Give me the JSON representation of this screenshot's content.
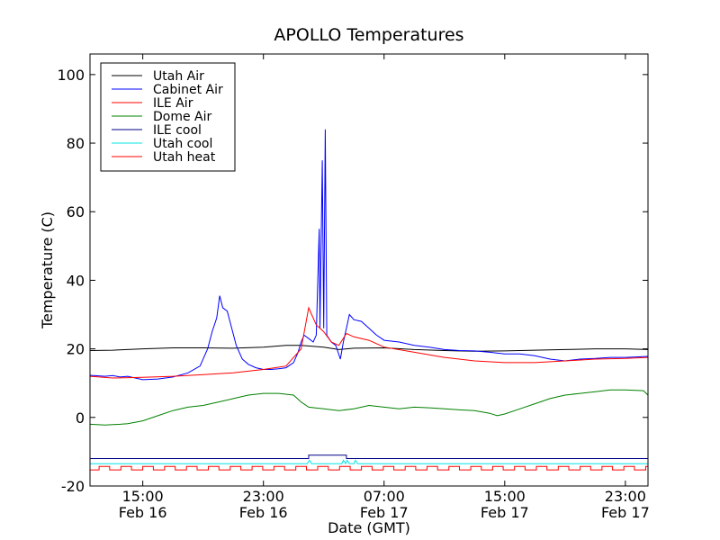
{
  "chart_data": {
    "type": "line",
    "title": "APOLLO Temperatures",
    "xlabel": "Date (GMT)",
    "ylabel": "Temperature (C)",
    "xlim": [
      11.5,
      48.5
    ],
    "ylim": [
      -20,
      106
    ],
    "y_ticks": [
      {
        "value": -20,
        "label": "-20"
      },
      {
        "value": 0,
        "label": "0"
      },
      {
        "value": 20,
        "label": "20"
      },
      {
        "value": 40,
        "label": "40"
      },
      {
        "value": 60,
        "label": "60"
      },
      {
        "value": 80,
        "label": "80"
      },
      {
        "value": 100,
        "label": "100"
      }
    ],
    "x_ticks": [
      {
        "value": 15,
        "time": "15:00",
        "date": "Feb 16"
      },
      {
        "value": 23,
        "time": "23:00",
        "date": "Feb 16"
      },
      {
        "value": 31,
        "time": "07:00",
        "date": "Feb 17"
      },
      {
        "value": 39,
        "time": "15:00",
        "date": "Feb 17"
      },
      {
        "value": 47,
        "time": "23:00",
        "date": "Feb 17"
      }
    ],
    "legend_position": "top-left",
    "series": [
      {
        "name": "Utah Air",
        "color": "#000000",
        "points": [
          [
            11.5,
            19.5
          ],
          [
            13,
            19.6
          ],
          [
            15,
            20
          ],
          [
            17,
            20.3
          ],
          [
            19,
            20.3
          ],
          [
            21,
            20.2
          ],
          [
            23,
            20.5
          ],
          [
            24.5,
            21
          ],
          [
            25.5,
            21
          ],
          [
            27,
            20.5
          ],
          [
            28,
            19.8
          ],
          [
            29,
            20.2
          ],
          [
            31,
            20.3
          ],
          [
            33,
            19.8
          ],
          [
            35,
            19.5
          ],
          [
            37,
            19.3
          ],
          [
            39,
            19.4
          ],
          [
            41,
            19.6
          ],
          [
            43,
            19.8
          ],
          [
            45,
            20
          ],
          [
            47,
            20
          ],
          [
            48.5,
            19.8
          ]
        ]
      },
      {
        "name": "Cabinet Air",
        "color": "#0000ff",
        "points": [
          [
            11.5,
            12.3
          ],
          [
            12.5,
            12
          ],
          [
            13,
            12.2
          ],
          [
            13.5,
            11.8
          ],
          [
            14,
            12
          ],
          [
            15,
            11
          ],
          [
            16,
            11.2
          ],
          [
            17,
            11.8
          ],
          [
            18,
            13
          ],
          [
            18.8,
            15
          ],
          [
            19.3,
            20
          ],
          [
            19.6,
            25
          ],
          [
            19.9,
            29
          ],
          [
            20.1,
            35.5
          ],
          [
            20.3,
            32
          ],
          [
            20.6,
            31
          ],
          [
            20.9,
            26
          ],
          [
            21.2,
            21
          ],
          [
            21.6,
            17
          ],
          [
            22,
            15.5
          ],
          [
            22.5,
            14.5
          ],
          [
            23,
            14
          ],
          [
            23.5,
            14
          ],
          [
            24,
            14.2
          ],
          [
            24.5,
            14.5
          ],
          [
            25,
            16
          ],
          [
            25.3,
            19
          ],
          [
            25.5,
            22
          ],
          [
            25.7,
            24
          ],
          [
            26,
            23
          ],
          [
            26.3,
            22
          ],
          [
            26.5,
            24
          ],
          [
            26.7,
            55
          ],
          [
            26.75,
            26
          ],
          [
            26.9,
            75
          ],
          [
            27,
            26
          ],
          [
            27.1,
            84
          ],
          [
            27.2,
            24
          ],
          [
            27.5,
            22
          ],
          [
            27.8,
            21
          ],
          [
            28.1,
            17
          ],
          [
            28.3,
            22
          ],
          [
            28.5,
            26
          ],
          [
            28.7,
            30
          ],
          [
            29,
            28.5
          ],
          [
            29.5,
            28
          ],
          [
            30,
            26
          ],
          [
            30.5,
            24
          ],
          [
            31,
            22.5
          ],
          [
            32,
            22
          ],
          [
            33,
            21
          ],
          [
            34,
            20.5
          ],
          [
            35,
            19.8
          ],
          [
            36,
            19.5
          ],
          [
            37,
            19.4
          ],
          [
            38,
            19
          ],
          [
            39,
            18.5
          ],
          [
            40,
            18.5
          ],
          [
            41,
            18
          ],
          [
            42,
            17
          ],
          [
            43,
            16.5
          ],
          [
            44,
            17
          ],
          [
            45,
            17.2
          ],
          [
            46,
            17.5
          ],
          [
            47,
            17.5
          ],
          [
            48.5,
            17.8
          ]
        ]
      },
      {
        "name": "ILE Air",
        "color": "#ff0000",
        "points": [
          [
            11.5,
            12
          ],
          [
            13,
            11.5
          ],
          [
            15,
            11.7
          ],
          [
            17,
            12
          ],
          [
            19,
            12.5
          ],
          [
            21,
            13
          ],
          [
            23,
            14
          ],
          [
            24.5,
            15
          ],
          [
            25.5,
            20
          ],
          [
            26,
            32
          ],
          [
            26.2,
            30
          ],
          [
            26.5,
            27
          ],
          [
            27,
            25
          ],
          [
            27.5,
            22
          ],
          [
            28,
            21
          ],
          [
            28.5,
            24.5
          ],
          [
            29,
            23.5
          ],
          [
            30,
            22.5
          ],
          [
            31,
            20.5
          ],
          [
            33,
            19
          ],
          [
            35,
            17.5
          ],
          [
            37,
            16.5
          ],
          [
            39,
            16
          ],
          [
            41,
            16
          ],
          [
            43,
            16.5
          ],
          [
            45,
            17
          ],
          [
            47,
            17.2
          ],
          [
            48.5,
            17.5
          ]
        ]
      },
      {
        "name": "Dome Air",
        "color": "#008000",
        "points": [
          [
            11.5,
            -2
          ],
          [
            12.5,
            -2.2
          ],
          [
            13.5,
            -2
          ],
          [
            14,
            -1.8
          ],
          [
            15,
            -1
          ],
          [
            16,
            0.5
          ],
          [
            17,
            2
          ],
          [
            18,
            3
          ],
          [
            19,
            3.5
          ],
          [
            20,
            4.5
          ],
          [
            21,
            5.5
          ],
          [
            22,
            6.5
          ],
          [
            23,
            7
          ],
          [
            24,
            7
          ],
          [
            25,
            6.5
          ],
          [
            25.5,
            4.5
          ],
          [
            26,
            3
          ],
          [
            27,
            2.5
          ],
          [
            28,
            2
          ],
          [
            29,
            2.5
          ],
          [
            30,
            3.5
          ],
          [
            31,
            3
          ],
          [
            32,
            2.5
          ],
          [
            33,
            3
          ],
          [
            34,
            2.8
          ],
          [
            35,
            2.5
          ],
          [
            36,
            2.2
          ],
          [
            37,
            2
          ],
          [
            38,
            1.2
          ],
          [
            38.5,
            0.5
          ],
          [
            39,
            1
          ],
          [
            40,
            2.5
          ],
          [
            41,
            4
          ],
          [
            42,
            5.5
          ],
          [
            43,
            6.5
          ],
          [
            44,
            7
          ],
          [
            45,
            7.5
          ],
          [
            46,
            8
          ],
          [
            47,
            8
          ],
          [
            48.2,
            7.8
          ],
          [
            48.5,
            6.5
          ]
        ]
      },
      {
        "name": "ILE cool",
        "color": "#00008b",
        "points": [
          [
            11.5,
            -12
          ],
          [
            26,
            -12
          ],
          [
            26,
            -11
          ],
          [
            28.5,
            -11
          ],
          [
            28.5,
            -12
          ],
          [
            48.5,
            -12
          ]
        ]
      },
      {
        "name": "Utah cool",
        "color": "#00e5e5",
        "points": [
          [
            11.5,
            -13.5
          ],
          [
            25.9,
            -13.5
          ],
          [
            26.05,
            -12.5
          ],
          [
            26.2,
            -13.5
          ],
          [
            28.2,
            -13.5
          ],
          [
            28.3,
            -12.5
          ],
          [
            28.45,
            -13.5
          ],
          [
            28.55,
            -12.5
          ],
          [
            28.7,
            -13.5
          ],
          [
            29,
            -13.5
          ],
          [
            29.1,
            -12.5
          ],
          [
            29.25,
            -13.5
          ],
          [
            48.5,
            -13.5
          ]
        ]
      },
      {
        "name": "Utah heat",
        "color": "#ff0000",
        "pulse": {
          "low": -15.3,
          "high": -14.3,
          "start": 12.1,
          "period": 1.45,
          "width": 0.7
        }
      }
    ]
  }
}
